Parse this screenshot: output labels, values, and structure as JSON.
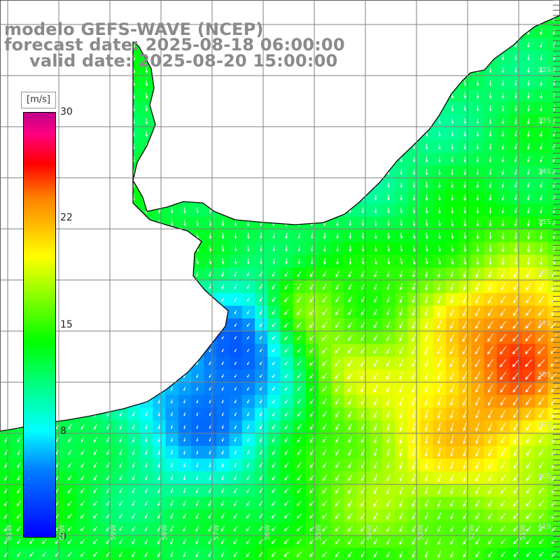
{
  "title": {
    "line1": "modelo GEFS-WAVE (NCEP)",
    "line2": "forecast date: 2025-08-18 06:00:00",
    "line3": "valid date: 2025-08-20 15:00:00"
  },
  "colorbar": {
    "unit": "[m/s]",
    "min": 0,
    "max": 30,
    "ticks": [
      "30",
      "22",
      "15",
      "8",
      "0"
    ],
    "tick_values": [
      30,
      22,
      15,
      8,
      0
    ]
  },
  "grid": {
    "lat_labels": [
      "32S",
      "33S",
      "34S",
      "35S",
      "36S",
      "37S",
      "38S",
      "39S",
      "40S",
      "41S"
    ],
    "lon_labels": [
      "61W",
      "60W",
      "59W",
      "58W",
      "57W",
      "56W",
      "55W",
      "54W",
      "53W",
      "52W",
      "51W"
    ]
  },
  "colors": {
    "title": "#8a8a8a",
    "land": "#ffffff",
    "coastline": "#000000",
    "gridline": "#7f7f7f",
    "arrow": "#ffffff"
  }
}
